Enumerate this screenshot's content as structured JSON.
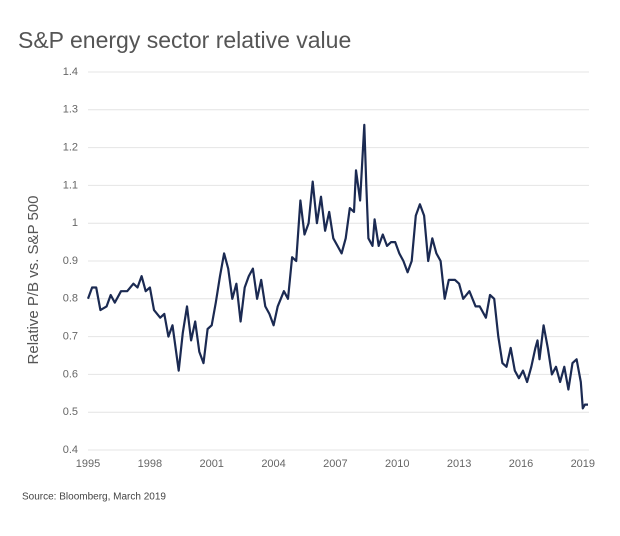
{
  "chart_data": {
    "type": "line",
    "title": "S&P energy sector relative value",
    "y_label": "Relative P/B vs. S&P 500",
    "source": "Source: Bloomberg, March 2019",
    "xlim": [
      1995,
      2019.3
    ],
    "xticks": [
      1995,
      1998,
      2001,
      2004,
      2007,
      2010,
      2013,
      2016,
      2019
    ],
    "ylim": [
      0.4,
      1.4
    ],
    "yticks": [
      0.4,
      0.5,
      0.6,
      0.7,
      0.8,
      0.9,
      1,
      1.1,
      1.2,
      1.3,
      1.4
    ],
    "grid": true,
    "x": [
      1995.0,
      1995.2,
      1995.4,
      1995.6,
      1995.9,
      1996.1,
      1996.3,
      1996.6,
      1996.9,
      1997.2,
      1997.4,
      1997.6,
      1997.8,
      1998.0,
      1998.2,
      1998.5,
      1998.7,
      1998.9,
      1999.1,
      1999.4,
      1999.6,
      1999.8,
      2000.0,
      2000.2,
      2000.4,
      2000.6,
      2000.8,
      2001.0,
      2001.2,
      2001.4,
      2001.6,
      2001.8,
      2002.0,
      2002.2,
      2002.4,
      2002.6,
      2002.8,
      2003.0,
      2003.2,
      2003.4,
      2003.6,
      2003.8,
      2004.0,
      2004.2,
      2004.5,
      2004.7,
      2004.9,
      2005.1,
      2005.3,
      2005.5,
      2005.7,
      2005.9,
      2006.1,
      2006.3,
      2006.5,
      2006.7,
      2006.9,
      2007.1,
      2007.3,
      2007.5,
      2007.7,
      2007.9,
      2008.0,
      2008.2,
      2008.4,
      2008.5,
      2008.6,
      2008.8,
      2008.9,
      2009.1,
      2009.3,
      2009.5,
      2009.7,
      2009.9,
      2010.1,
      2010.3,
      2010.5,
      2010.7,
      2010.9,
      2011.1,
      2011.3,
      2011.5,
      2011.7,
      2011.9,
      2012.1,
      2012.3,
      2012.5,
      2012.8,
      2013.0,
      2013.2,
      2013.5,
      2013.8,
      2014.0,
      2014.3,
      2014.5,
      2014.7,
      2014.9,
      2015.1,
      2015.3,
      2015.5,
      2015.7,
      2015.9,
      2016.1,
      2016.3,
      2016.5,
      2016.7,
      2016.8,
      2016.9,
      2017.1,
      2017.3,
      2017.5,
      2017.7,
      2017.9,
      2018.1,
      2018.3,
      2018.5,
      2018.7,
      2018.9,
      2019.0,
      2019.1,
      2019.25
    ],
    "series": [
      {
        "color": "#1b2a52",
        "values": [
          0.8,
          0.83,
          0.83,
          0.77,
          0.78,
          0.81,
          0.79,
          0.82,
          0.82,
          0.84,
          0.83,
          0.86,
          0.82,
          0.83,
          0.77,
          0.75,
          0.76,
          0.7,
          0.73,
          0.61,
          0.71,
          0.78,
          0.69,
          0.74,
          0.66,
          0.63,
          0.72,
          0.73,
          0.79,
          0.86,
          0.92,
          0.88,
          0.8,
          0.84,
          0.74,
          0.83,
          0.86,
          0.88,
          0.8,
          0.85,
          0.78,
          0.76,
          0.73,
          0.78,
          0.82,
          0.8,
          0.91,
          0.9,
          1.06,
          0.97,
          1.0,
          1.11,
          1.0,
          1.07,
          0.98,
          1.03,
          0.96,
          0.94,
          0.92,
          0.96,
          1.04,
          1.03,
          1.14,
          1.06,
          1.26,
          1.1,
          0.96,
          0.94,
          1.01,
          0.94,
          0.97,
          0.94,
          0.95,
          0.95,
          0.92,
          0.9,
          0.87,
          0.9,
          1.02,
          1.05,
          1.02,
          0.9,
          0.96,
          0.92,
          0.9,
          0.8,
          0.85,
          0.85,
          0.84,
          0.8,
          0.82,
          0.78,
          0.78,
          0.75,
          0.81,
          0.8,
          0.7,
          0.63,
          0.62,
          0.67,
          0.61,
          0.59,
          0.61,
          0.58,
          0.62,
          0.67,
          0.69,
          0.64,
          0.73,
          0.67,
          0.6,
          0.62,
          0.58,
          0.62,
          0.56,
          0.63,
          0.64,
          0.58,
          0.51,
          0.52,
          0.52
        ]
      }
    ]
  }
}
